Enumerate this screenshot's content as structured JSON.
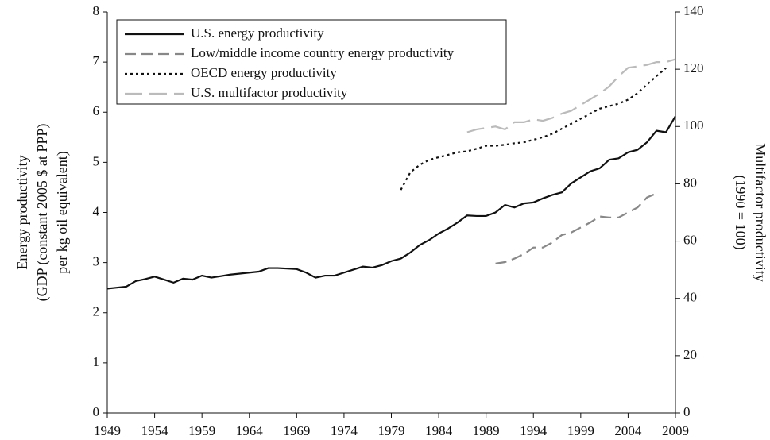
{
  "chart_data": {
    "type": "line",
    "ylabel": [
      "Energy productivity",
      "(GDP (constant 2005 $ at PPP)",
      "per kg oil equivalent)"
    ],
    "y2label": [
      "Multifactor productivity",
      "(1990 = 100)"
    ],
    "xlim": [
      1949,
      2009
    ],
    "xticks": [
      1949,
      1954,
      1959,
      1964,
      1969,
      1974,
      1979,
      1984,
      1989,
      1994,
      1999,
      2004,
      2009
    ],
    "ylim": [
      0,
      8
    ],
    "yticks": [
      0,
      1,
      2,
      3,
      4,
      5,
      6,
      7,
      8
    ],
    "y2lim": [
      0,
      140
    ],
    "y2ticks": [
      0,
      20,
      40,
      60,
      80,
      100,
      120,
      140
    ],
    "legend": "upper left",
    "series": [
      {
        "name": "U.S. energy productivity",
        "color": "#111111",
        "dash": "solid",
        "x": [
          1949,
          1950,
          1951,
          1952,
          1953,
          1954,
          1955,
          1956,
          1957,
          1958,
          1959,
          1960,
          1961,
          1962,
          1963,
          1964,
          1965,
          1966,
          1967,
          1968,
          1969,
          1970,
          1971,
          1972,
          1973,
          1974,
          1975,
          1976,
          1977,
          1978,
          1979,
          1980,
          1981,
          1982,
          1983,
          1984,
          1985,
          1986,
          1987,
          1988,
          1989,
          1990,
          1991,
          1992,
          1993,
          1994,
          1995,
          1996,
          1997,
          1998,
          1999,
          2000,
          2001,
          2002,
          2003,
          2004,
          2005,
          2006,
          2007,
          2008,
          2009
        ],
        "values": [
          2.48,
          2.5,
          2.52,
          2.63,
          2.67,
          2.72,
          2.66,
          2.6,
          2.68,
          2.66,
          2.74,
          2.7,
          2.73,
          2.76,
          2.78,
          2.8,
          2.82,
          2.89,
          2.89,
          2.88,
          2.87,
          2.8,
          2.7,
          2.74,
          2.74,
          2.8,
          2.86,
          2.92,
          2.9,
          2.95,
          3.03,
          3.08,
          3.2,
          3.35,
          3.45,
          3.58,
          3.68,
          3.8,
          3.94,
          3.93,
          3.93,
          4.0,
          4.15,
          4.1,
          4.18,
          4.2,
          4.28,
          4.35,
          4.4,
          4.58,
          4.7,
          4.82,
          4.88,
          5.05,
          5.08,
          5.2,
          5.25,
          5.4,
          5.63,
          5.6,
          5.92
        ]
      },
      {
        "name": "Low/middle income country energy productivity",
        "color": "#888888",
        "dash": "dashed",
        "x": [
          1990,
          1991,
          1992,
          1993,
          1994,
          1995,
          1996,
          1997,
          1998,
          1999,
          2000,
          2001,
          2002,
          2003,
          2004,
          2005,
          2006,
          2007
        ],
        "values": [
          2.98,
          3.01,
          3.08,
          3.17,
          3.3,
          3.3,
          3.4,
          3.55,
          3.6,
          3.7,
          3.8,
          3.92,
          3.9,
          3.9,
          4.0,
          4.1,
          4.3,
          4.38
        ]
      },
      {
        "name": "OECD energy productivity",
        "color": "#111111",
        "dash": "dotted",
        "x": [
          1980,
          1981,
          1982,
          1983,
          1984,
          1985,
          1986,
          1987,
          1988,
          1989,
          1990,
          1991,
          1992,
          1993,
          1994,
          1995,
          1996,
          1997,
          1998,
          1999,
          2000,
          2001,
          2002,
          2003,
          2004,
          2005,
          2006,
          2007,
          2008
        ],
        "values": [
          4.45,
          4.8,
          4.95,
          5.05,
          5.1,
          5.15,
          5.2,
          5.22,
          5.27,
          5.33,
          5.33,
          5.35,
          5.38,
          5.4,
          5.45,
          5.5,
          5.57,
          5.67,
          5.77,
          5.87,
          5.97,
          6.07,
          6.12,
          6.17,
          6.25,
          6.38,
          6.55,
          6.72,
          6.88
        ]
      },
      {
        "name": "U.S. multifactor productivity",
        "color": "#bbbbbb",
        "dash": "longdash",
        "axis": "y2",
        "x": [
          1987,
          1988,
          1989,
          1990,
          1991,
          1992,
          1993,
          1994,
          1995,
          1996,
          1997,
          1998,
          1999,
          2000,
          2001,
          2002,
          2003,
          2004,
          2005,
          2006,
          2007,
          2008,
          2009
        ],
        "values": [
          98,
          99,
          99.5,
          100,
          99,
          101.5,
          101.5,
          102.5,
          102,
          103,
          104.5,
          105.5,
          107.5,
          109.5,
          111.5,
          114,
          117.5,
          120.5,
          121,
          121.5,
          122.5,
          122.5,
          123.5
        ]
      }
    ]
  }
}
